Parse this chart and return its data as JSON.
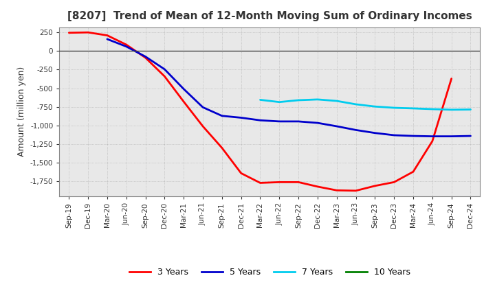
{
  "title": "[8207]  Trend of Mean of 12-Month Moving Sum of Ordinary Incomes",
  "ylabel": "Amount (million yen)",
  "background_color": "#ffffff",
  "plot_bg_color": "#e8e8e8",
  "grid_color": "#888888",
  "title_color": "#333333",
  "x_labels": [
    "Sep-19",
    "Dec-19",
    "Mar-20",
    "Jun-20",
    "Sep-20",
    "Dec-20",
    "Mar-21",
    "Jun-21",
    "Sep-21",
    "Dec-21",
    "Mar-22",
    "Jun-22",
    "Sep-22",
    "Dec-22",
    "Mar-23",
    "Jun-23",
    "Sep-23",
    "Dec-23",
    "Mar-24",
    "Jun-24",
    "Sep-24",
    "Dec-24"
  ],
  "ylim": [
    -1950,
    320
  ],
  "yticks": [
    250,
    0,
    -250,
    -500,
    -750,
    -1000,
    -1250,
    -1500,
    -1750
  ],
  "series": {
    "3 Years": {
      "color": "#ff0000",
      "data_x": [
        0,
        1,
        2,
        3,
        4,
        5,
        6,
        7,
        8,
        9,
        10,
        11,
        12,
        13,
        14,
        15,
        16,
        17,
        18,
        19,
        20
      ],
      "data_y": [
        245,
        250,
        210,
        85,
        -90,
        -340,
        -680,
        -1010,
        -1300,
        -1640,
        -1770,
        -1760,
        -1760,
        -1820,
        -1870,
        -1875,
        -1810,
        -1760,
        -1620,
        -1210,
        -370
      ]
    },
    "5 Years": {
      "color": "#0000cc",
      "data_x": [
        2,
        3,
        4,
        5,
        6,
        7,
        8,
        9,
        10,
        11,
        12,
        13,
        14,
        15,
        16,
        17,
        18,
        19,
        20,
        21
      ],
      "data_y": [
        160,
        60,
        -75,
        -245,
        -510,
        -755,
        -870,
        -895,
        -930,
        -945,
        -945,
        -965,
        -1010,
        -1060,
        -1100,
        -1130,
        -1140,
        -1145,
        -1145,
        -1140
      ]
    },
    "7 Years": {
      "color": "#00ccee",
      "data_x": [
        10,
        11,
        12,
        13,
        14,
        15,
        16,
        17,
        18,
        19,
        20,
        21
      ],
      "data_y": [
        -655,
        -685,
        -660,
        -650,
        -670,
        -715,
        -745,
        -762,
        -770,
        -780,
        -788,
        -785
      ]
    },
    "10 Years": {
      "color": "#008000",
      "data_x": [],
      "data_y": []
    }
  },
  "legend_entries": [
    "3 Years",
    "5 Years",
    "7 Years",
    "10 Years"
  ],
  "legend_colors": [
    "#ff0000",
    "#0000cc",
    "#00ccee",
    "#008000"
  ]
}
